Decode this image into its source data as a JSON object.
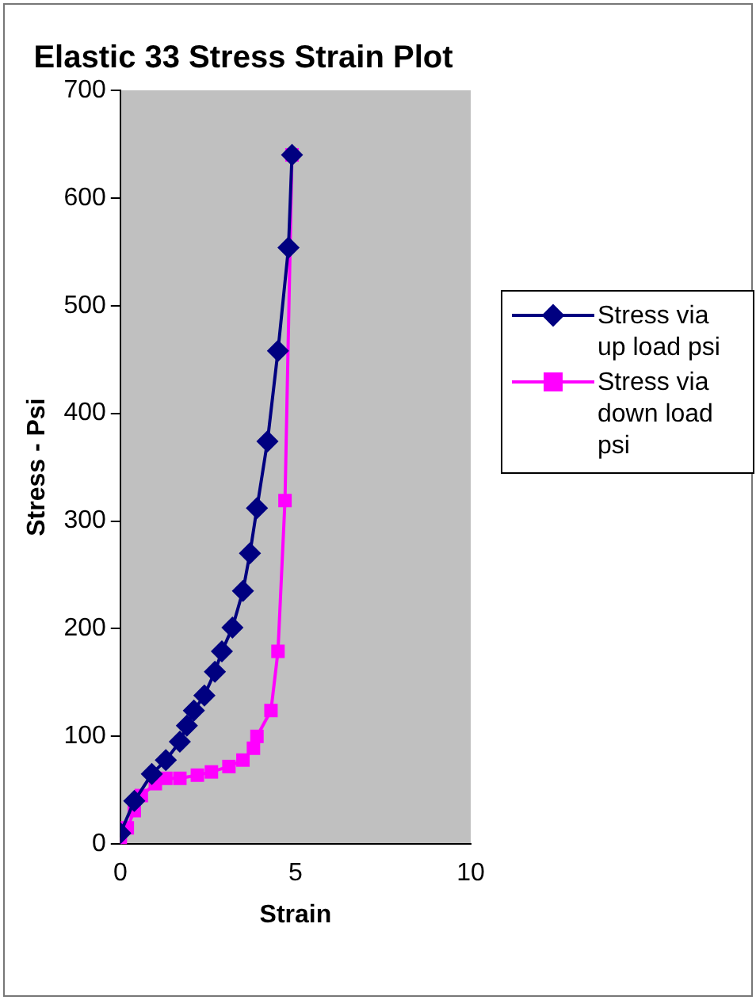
{
  "chart_data": {
    "type": "line",
    "title": "Elastic 33 Stress Strain Plot",
    "xlabel": "Strain",
    "ylabel": "Stress - Psi",
    "xlim": [
      0,
      10
    ],
    "xticks": [
      0,
      5,
      10
    ],
    "ylim": [
      0,
      700
    ],
    "yticks": [
      0,
      100,
      200,
      300,
      400,
      500,
      600,
      700
    ],
    "grid": false,
    "legend": "right",
    "series": [
      {
        "name": "Stress via up load psi",
        "color": "#000080",
        "marker": "diamond",
        "x": [
          0,
          0.4,
          0.9,
          1.3,
          1.7,
          1.9,
          2.1,
          2.4,
          2.7,
          2.9,
          3.2,
          3.5,
          3.7,
          3.9,
          4.2,
          4.5,
          4.8,
          4.9
        ],
        "values": [
          10,
          40,
          65,
          78,
          95,
          110,
          124,
          138,
          160,
          179,
          201,
          235,
          270,
          312,
          374,
          458,
          554,
          640
        ]
      },
      {
        "name": "Stress via down load psi",
        "color": "#ff00ff",
        "marker": "square",
        "x": [
          0,
          0.2,
          0.4,
          0.6,
          1.0,
          1.3,
          1.7,
          2.2,
          2.6,
          3.1,
          3.5,
          3.8,
          3.9,
          4.3,
          4.5,
          4.7,
          4.9
        ],
        "values": [
          0,
          15,
          31,
          45,
          56,
          61,
          61,
          64,
          67,
          72,
          78,
          89,
          100,
          124,
          179,
          319,
          640
        ]
      }
    ]
  }
}
